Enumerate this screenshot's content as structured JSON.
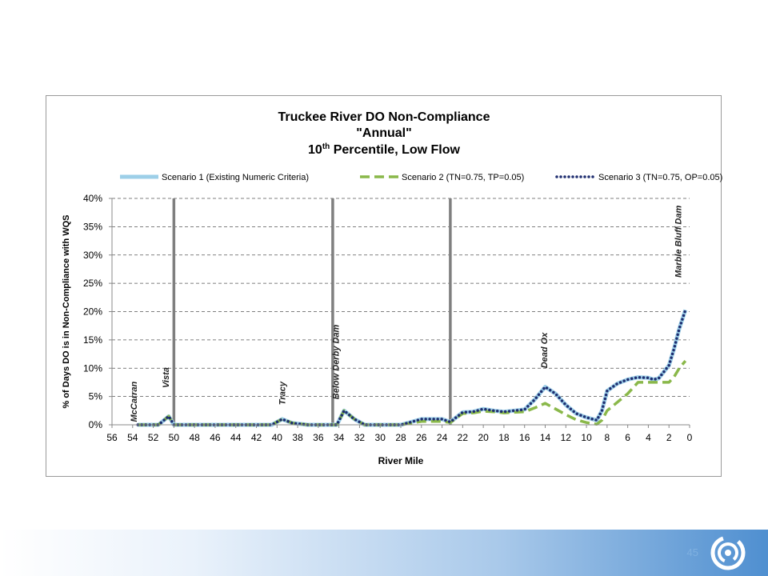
{
  "chart_data": {
    "type": "line",
    "title_lines": [
      "Truckee River DO Non-Compliance",
      "\"Annual\""
    ],
    "title_line3": {
      "prefix": "10",
      "superscript": "th",
      "suffix": " Percentile, Low Flow"
    },
    "xlabel": "River Mile",
    "ylabel": "% of Days DO is in Non-Compliance with WQS",
    "xlim": [
      56,
      0
    ],
    "ylim": [
      0,
      40
    ],
    "x_reversed": true,
    "x_ticks": [
      56,
      54,
      52,
      50,
      48,
      46,
      44,
      42,
      40,
      38,
      36,
      34,
      32,
      30,
      28,
      26,
      24,
      22,
      20,
      18,
      16,
      14,
      12,
      10,
      8,
      6,
      4,
      2,
      0
    ],
    "y_ticks": [
      0,
      5,
      10,
      15,
      20,
      25,
      30,
      35,
      40
    ],
    "y_tick_labels": [
      "0%",
      "5%",
      "10%",
      "15%",
      "20%",
      "25%",
      "30%",
      "35%",
      "40%"
    ],
    "grid": "horizontal dashed",
    "legend_position": "top",
    "series": [
      {
        "name": "Scenario 1 (Existing Numeric Criteria)",
        "style": "solid",
        "color": "#9dcfe8",
        "x": [
          53.5,
          51.5,
          50.5,
          50,
          48,
          46,
          44,
          42,
          40.5,
          39.5,
          38.5,
          37,
          35,
          34.2,
          33.5,
          32.5,
          31.5,
          30,
          28,
          27,
          26,
          25,
          24,
          23.2,
          22,
          21,
          20,
          19,
          18,
          17,
          16,
          15,
          14,
          13,
          12,
          11,
          10,
          9,
          8.5,
          8,
          7,
          6,
          5,
          4,
          3.5,
          3,
          2,
          1.5,
          1,
          0.4
        ],
        "y": [
          0,
          0,
          1.5,
          0,
          0,
          0,
          0,
          0,
          0,
          1,
          0.3,
          0,
          0,
          0,
          2.5,
          1,
          0,
          0,
          0,
          0.5,
          1,
          1,
          1,
          0.5,
          2.2,
          2.3,
          2.8,
          2.5,
          2.3,
          2.5,
          2.7,
          4.5,
          6.7,
          5.5,
          3.5,
          2,
          1.3,
          0.8,
          2.5,
          6,
          7.3,
          8,
          8.4,
          8.3,
          8,
          8.2,
          10.5,
          13.5,
          17,
          20.3
        ]
      },
      {
        "name": "Scenario 2 (TN=0.75, TP=0.05)",
        "style": "dashed",
        "color": "#8ab84a",
        "x": [
          53.5,
          51.5,
          50.5,
          50,
          48,
          46,
          44,
          42,
          40.5,
          39.5,
          38.5,
          37,
          35,
          34.2,
          33.5,
          32.5,
          31.5,
          30,
          28,
          27,
          26,
          25,
          24,
          23.2,
          22,
          21,
          20,
          19,
          18,
          17,
          16,
          15,
          14,
          13,
          12,
          11,
          10,
          9,
          8.5,
          8,
          7,
          6,
          5,
          4,
          3.5,
          3,
          2,
          1.5,
          1,
          0.4
        ],
        "y": [
          0,
          0,
          1.5,
          0,
          0,
          0,
          0,
          0,
          0,
          1,
          0.3,
          0,
          0,
          0,
          2.5,
          1,
          0,
          0,
          0,
          0.3,
          0.6,
          0.6,
          0.6,
          0.4,
          2,
          2.1,
          2.4,
          2.3,
          2.1,
          2.2,
          2.3,
          3,
          3.8,
          2.8,
          1.8,
          0.9,
          0.4,
          0.1,
          0.8,
          2.5,
          4,
          5.5,
          7.5,
          7.5,
          7.5,
          7.5,
          7.5,
          8.5,
          10,
          11.3
        ]
      },
      {
        "name": "Scenario 3 (TN=0.75, OP=0.05)",
        "style": "dotted",
        "color": "#1f2e70",
        "x": [
          53.5,
          51.5,
          50.5,
          50,
          48,
          46,
          44,
          42,
          40.5,
          39.5,
          38.5,
          37,
          35,
          34.2,
          33.5,
          32.5,
          31.5,
          30,
          28,
          27,
          26,
          25,
          24,
          23.2,
          22,
          21,
          20,
          19,
          18,
          17,
          16,
          15,
          14,
          13,
          12,
          11,
          10,
          9,
          8.5,
          8,
          7,
          6,
          5,
          4,
          3.5,
          3,
          2,
          1.5,
          1,
          0.4
        ],
        "y": [
          0,
          0,
          1.5,
          0,
          0,
          0,
          0,
          0,
          0,
          1,
          0.3,
          0,
          0,
          0,
          2.5,
          1,
          0,
          0,
          0,
          0.5,
          1,
          1,
          1,
          0.5,
          2.2,
          2.3,
          2.8,
          2.5,
          2.3,
          2.5,
          2.7,
          4.5,
          6.7,
          5.5,
          3.5,
          2,
          1.3,
          0.8,
          2.5,
          6,
          7.3,
          8,
          8.4,
          8.3,
          8,
          8.2,
          10.5,
          13.5,
          17,
          20.3
        ]
      }
    ],
    "vertical_markers": [
      {
        "x": 50
      },
      {
        "x": 34.6
      },
      {
        "x": 23.2
      }
    ],
    "annotations": [
      {
        "text": "McCarran",
        "x": 53.6,
        "y": 0.5
      },
      {
        "text": "Vista",
        "x": 50.5,
        "y": 6.5
      },
      {
        "text": "Tracy",
        "x": 39.2,
        "y": 3.5
      },
      {
        "text": "Below Derby Dam",
        "x": 34,
        "y": 4.5
      },
      {
        "text": "Dead Ox",
        "x": 13.8,
        "y": 10
      },
      {
        "text": "Marble Bluff Dam",
        "x": 0.8,
        "y": 26
      }
    ]
  },
  "footer": {
    "page_number": "45",
    "logo_icon": "swirl-logo-icon",
    "logo_color": "#2e6fb8"
  }
}
